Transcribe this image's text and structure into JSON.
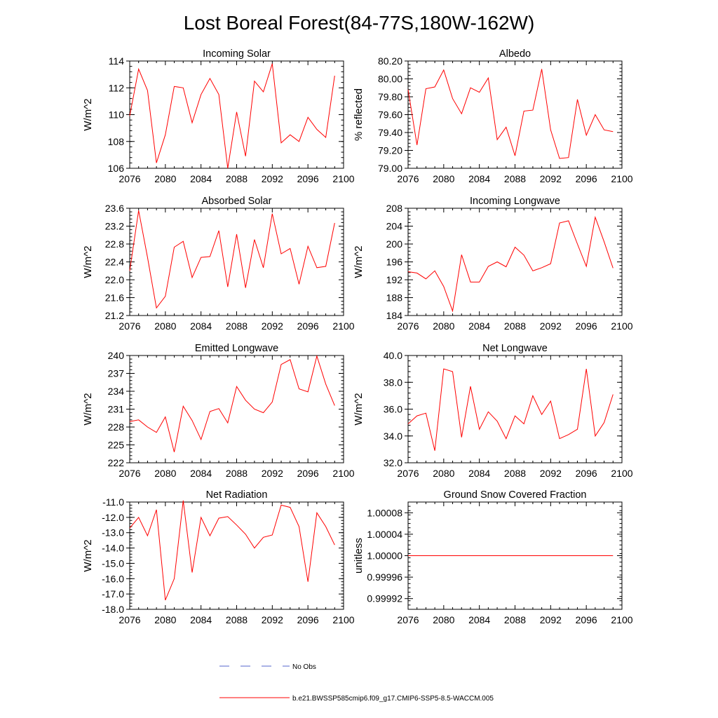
{
  "figure": {
    "title": "Lost Boreal Forest(84-77S,180W-162W)"
  },
  "legend": {
    "position": "bottom-center",
    "items": [
      {
        "label": "No Obs",
        "color": "#5566cc",
        "style": "dashed"
      },
      {
        "label": "b.e21.BWSSP585cmip6.f09_g17.CMIP6-SSP5-8.5-WACCM.005",
        "color": "#ff0000",
        "style": "solid"
      }
    ]
  },
  "chart_data": [
    {
      "type": "line",
      "title": "Incoming Solar",
      "xlabel": "",
      "ylabel": "W/m^2",
      "xlim": [
        2076,
        2100
      ],
      "ylim": [
        106,
        114
      ],
      "xticks": [
        2076,
        2080,
        2084,
        2088,
        2092,
        2096,
        2100
      ],
      "yticks": [
        106,
        108,
        110,
        112,
        114
      ],
      "ytick_labels": [
        "106",
        "108",
        "110",
        "112",
        "114"
      ],
      "series": [
        {
          "color": "#ff0000",
          "x": [
            2076,
            2077,
            2078,
            2079,
            2080,
            2081,
            2082,
            2083,
            2084,
            2085,
            2086,
            2087,
            2088,
            2089,
            2090,
            2091,
            2092,
            2093,
            2094,
            2095,
            2096,
            2097,
            2098,
            2099
          ],
          "y": [
            109.9,
            113.4,
            111.8,
            106.4,
            108.5,
            112.1,
            112.0,
            109.4,
            111.5,
            112.7,
            111.5,
            106.0,
            110.2,
            106.9,
            112.5,
            111.7,
            113.8,
            107.9,
            108.5,
            108.0,
            109.8,
            108.9,
            108.3,
            112.9
          ]
        }
      ]
    },
    {
      "type": "line",
      "title": "Albedo",
      "xlabel": "",
      "ylabel": "% reflected",
      "xlim": [
        2076,
        2100
      ],
      "ylim": [
        79.0,
        80.2
      ],
      "xticks": [
        2076,
        2080,
        2084,
        2088,
        2092,
        2096,
        2100
      ],
      "yticks": [
        79.0,
        79.2,
        79.4,
        79.6,
        79.8,
        80.0,
        80.2
      ],
      "ytick_labels": [
        "79.00",
        "79.20",
        "79.40",
        "79.60",
        "79.80",
        "80.00",
        "80.20"
      ],
      "series": [
        {
          "color": "#ff0000",
          "x": [
            2076,
            2077,
            2078,
            2079,
            2080,
            2081,
            2082,
            2083,
            2084,
            2085,
            2086,
            2087,
            2088,
            2089,
            2090,
            2091,
            2092,
            2093,
            2094,
            2095,
            2096,
            2097,
            2098,
            2099
          ],
          "y": [
            79.88,
            79.26,
            79.89,
            79.91,
            80.1,
            79.78,
            79.61,
            79.9,
            79.85,
            80.01,
            79.32,
            79.46,
            79.14,
            79.64,
            79.65,
            80.11,
            79.43,
            79.11,
            79.12,
            79.77,
            79.37,
            79.6,
            79.43,
            79.41
          ]
        }
      ]
    },
    {
      "type": "line",
      "title": "Absorbed Solar",
      "xlabel": "",
      "ylabel": "W/m^2",
      "xlim": [
        2076,
        2100
      ],
      "ylim": [
        21.2,
        23.6
      ],
      "xticks": [
        2076,
        2080,
        2084,
        2088,
        2092,
        2096,
        2100
      ],
      "yticks": [
        21.2,
        21.6,
        22.0,
        22.4,
        22.8,
        23.2,
        23.6
      ],
      "ytick_labels": [
        "21.2",
        "21.6",
        "22.0",
        "22.4",
        "22.8",
        "23.2",
        "23.6"
      ],
      "series": [
        {
          "color": "#ff0000",
          "x": [
            2076,
            2077,
            2078,
            2079,
            2080,
            2081,
            2082,
            2083,
            2084,
            2085,
            2086,
            2087,
            2088,
            2089,
            2090,
            2091,
            2092,
            2093,
            2094,
            2095,
            2096,
            2097,
            2098,
            2099
          ],
          "y": [
            22.2,
            23.55,
            22.5,
            21.37,
            21.63,
            22.73,
            22.86,
            22.05,
            22.5,
            22.52,
            23.1,
            21.84,
            23.02,
            21.82,
            22.9,
            22.27,
            23.48,
            22.58,
            22.7,
            21.9,
            22.75,
            22.27,
            22.3,
            23.27
          ]
        }
      ]
    },
    {
      "type": "line",
      "title": "Incoming Longwave",
      "xlabel": "",
      "ylabel": "W/m^2",
      "xlim": [
        2076,
        2100
      ],
      "ylim": [
        184,
        208
      ],
      "xticks": [
        2076,
        2080,
        2084,
        2088,
        2092,
        2096,
        2100
      ],
      "yticks": [
        184,
        188,
        192,
        196,
        200,
        204,
        208
      ],
      "ytick_labels": [
        "184",
        "188",
        "192",
        "196",
        "200",
        "204",
        "208"
      ],
      "series": [
        {
          "color": "#ff0000",
          "x": [
            2076,
            2077,
            2078,
            2079,
            2080,
            2081,
            2082,
            2083,
            2084,
            2085,
            2086,
            2087,
            2088,
            2089,
            2090,
            2091,
            2092,
            2093,
            2094,
            2095,
            2096,
            2097,
            2098,
            2099
          ],
          "y": [
            193.8,
            193.5,
            192.2,
            194.0,
            190.5,
            185.0,
            197.6,
            191.5,
            191.5,
            195.0,
            196.0,
            194.9,
            199.3,
            197.5,
            194.0,
            194.7,
            195.6,
            204.7,
            205.2,
            200.0,
            195.0,
            206.0,
            200.5,
            194.6
          ]
        }
      ]
    },
    {
      "type": "line",
      "title": "Emitted Longwave",
      "xlabel": "",
      "ylabel": "W/m^2",
      "xlim": [
        2076,
        2100
      ],
      "ylim": [
        222,
        240
      ],
      "xticks": [
        2076,
        2080,
        2084,
        2088,
        2092,
        2096,
        2100
      ],
      "yticks": [
        222,
        225,
        228,
        231,
        234,
        237,
        240
      ],
      "ytick_labels": [
        "222",
        "225",
        "228",
        "231",
        "234",
        "237",
        "240"
      ],
      "series": [
        {
          "color": "#ff0000",
          "x": [
            2076,
            2077,
            2078,
            2079,
            2080,
            2081,
            2082,
            2083,
            2084,
            2085,
            2086,
            2087,
            2088,
            2089,
            2090,
            2091,
            2092,
            2093,
            2094,
            2095,
            2096,
            2097,
            2098,
            2099
          ],
          "y": [
            228.9,
            229.2,
            228.0,
            227.1,
            229.7,
            223.8,
            231.5,
            229.1,
            225.9,
            230.6,
            231.1,
            228.7,
            234.8,
            232.5,
            231.0,
            230.4,
            232.2,
            238.5,
            239.3,
            234.4,
            233.9,
            239.9,
            235.2,
            231.6
          ]
        }
      ]
    },
    {
      "type": "line",
      "title": "Net Longwave",
      "xlabel": "",
      "ylabel": "W/m^2",
      "xlim": [
        2076,
        2100
      ],
      "ylim": [
        32,
        40
      ],
      "xticks": [
        2076,
        2080,
        2084,
        2088,
        2092,
        2096,
        2100
      ],
      "yticks": [
        32,
        34,
        36,
        38,
        40
      ],
      "ytick_labels": [
        "32.0",
        "34.0",
        "36.0",
        "38.0",
        "40.0"
      ],
      "series": [
        {
          "color": "#ff0000",
          "x": [
            2076,
            2077,
            2078,
            2079,
            2080,
            2081,
            2082,
            2083,
            2084,
            2085,
            2086,
            2087,
            2088,
            2089,
            2090,
            2091,
            2092,
            2093,
            2094,
            2095,
            2096,
            2097,
            2098,
            2099
          ],
          "y": [
            34.9,
            35.5,
            35.7,
            32.9,
            39.0,
            38.8,
            33.9,
            37.7,
            34.5,
            35.8,
            35.1,
            33.8,
            35.5,
            34.9,
            37.0,
            35.6,
            36.6,
            33.8,
            34.1,
            34.5,
            39.0,
            34.0,
            35.0,
            37.1
          ]
        }
      ]
    },
    {
      "type": "line",
      "title": "Net Radiation",
      "xlabel": "",
      "ylabel": "W/m^2",
      "xlim": [
        2076,
        2100
      ],
      "ylim": [
        -18,
        -11
      ],
      "xticks": [
        2076,
        2080,
        2084,
        2088,
        2092,
        2096,
        2100
      ],
      "yticks": [
        -18,
        -17,
        -16,
        -15,
        -14,
        -13,
        -12,
        -11
      ],
      "ytick_labels": [
        "-18.0",
        "-17.0",
        "-16.0",
        "-15.0",
        "-14.0",
        "-13.0",
        "-12.0",
        "-11.0"
      ],
      "series": [
        {
          "color": "#ff0000",
          "x": [
            2076,
            2077,
            2078,
            2079,
            2080,
            2081,
            2082,
            2083,
            2084,
            2085,
            2086,
            2087,
            2088,
            2089,
            2090,
            2091,
            2092,
            2093,
            2094,
            2095,
            2096,
            2097,
            2098,
            2099
          ],
          "y": [
            -12.7,
            -12.0,
            -13.2,
            -11.5,
            -17.4,
            -16.0,
            -10.9,
            -15.6,
            -12.0,
            -13.2,
            -12.05,
            -11.95,
            -12.5,
            -13.1,
            -14.0,
            -13.3,
            -13.15,
            -11.2,
            -11.35,
            -12.6,
            -16.2,
            -11.7,
            -12.6,
            -13.8
          ]
        }
      ]
    },
    {
      "type": "line",
      "title": "Ground Snow Covered Fraction",
      "xlabel": "",
      "ylabel": "unitless",
      "xlim": [
        2076,
        2100
      ],
      "ylim": [
        0.9999,
        1.0001
      ],
      "xticks": [
        2076,
        2080,
        2084,
        2088,
        2092,
        2096,
        2100
      ],
      "yticks": [
        0.99992,
        0.99996,
        1.0,
        1.00004,
        1.00008
      ],
      "ytick_labels": [
        "0.99992",
        "0.99996",
        "1.00000",
        "1.00004",
        "1.00008"
      ],
      "series": [
        {
          "color": "#ff0000",
          "x": [
            2076,
            2099
          ],
          "y": [
            1.0,
            1.0
          ]
        }
      ]
    }
  ]
}
